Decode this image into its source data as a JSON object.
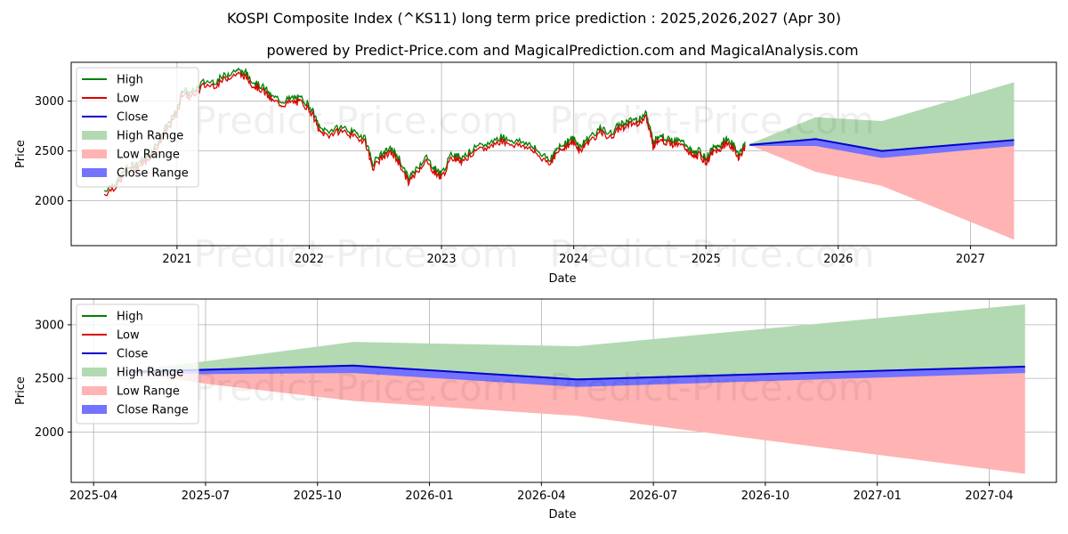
{
  "title": "KOSPI Composite Index (^KS11) long term price prediction : 2025,2026,2027 (Apr 30)",
  "subtitle": "powered by Predict-Price.com and MagicalPrediction.com and MagicalAnalysis.com",
  "watermark": "Predict-Price.com",
  "colors": {
    "high": "#008000",
    "low": "#dd0000",
    "close": "#0000cc",
    "high_range": "#b3d9b3",
    "low_range": "#ffb3b3",
    "close_range": "#7373ff",
    "grid": "#b0b0b0"
  },
  "chart_data": [
    {
      "type": "line",
      "xlabel": "Date",
      "ylabel": "Price",
      "xlim": [
        2020.2,
        2027.65
      ],
      "ylim": [
        1550,
        3390
      ],
      "xticks": [
        {
          "value": 2021,
          "label": "2021"
        },
        {
          "value": 2022,
          "label": "2022"
        },
        {
          "value": 2023,
          "label": "2023"
        },
        {
          "value": 2024,
          "label": "2024"
        },
        {
          "value": 2025,
          "label": "2025"
        },
        {
          "value": 2026,
          "label": "2026"
        },
        {
          "value": 2027,
          "label": "2027"
        }
      ],
      "yticks": [
        {
          "value": 2000,
          "label": "2000"
        },
        {
          "value": 2500,
          "label": "2500"
        },
        {
          "value": 3000,
          "label": "3000"
        }
      ],
      "legend": [
        "High",
        "Low",
        "Close",
        "High Range",
        "Low Range",
        "Close Range"
      ],
      "history_x": [
        2020.45,
        2020.55,
        2020.62,
        2020.7,
        2020.78,
        2020.85,
        2020.92,
        2021.0,
        2021.04,
        2021.1,
        2021.2,
        2021.3,
        2021.38,
        2021.45,
        2021.52,
        2021.58,
        2021.65,
        2021.72,
        2021.8,
        2021.88,
        2021.95,
        2022.02,
        2022.08,
        2022.15,
        2022.25,
        2022.35,
        2022.42,
        2022.48,
        2022.55,
        2022.62,
        2022.68,
        2022.75,
        2022.8,
        2022.88,
        2022.95,
        2023.0,
        2023.08,
        2023.15,
        2023.25,
        2023.35,
        2023.45,
        2023.55,
        2023.65,
        2023.72,
        2023.82,
        2023.88,
        2023.95,
        2024.0,
        2024.05,
        2024.1,
        2024.2,
        2024.28,
        2024.35,
        2024.42,
        2024.48,
        2024.55,
        2024.58,
        2024.6,
        2024.65,
        2024.7,
        2024.78,
        2024.85,
        2024.9,
        2024.95,
        2025.0,
        2025.05,
        2025.1,
        2025.15,
        2025.2,
        2025.25,
        2025.3
      ],
      "history_close": [
        2080,
        2180,
        2300,
        2360,
        2420,
        2560,
        2720,
        2880,
        3100,
        3050,
        3170,
        3180,
        3250,
        3290,
        3260,
        3170,
        3120,
        3020,
        2980,
        3010,
        3000,
        2900,
        2700,
        2680,
        2720,
        2650,
        2620,
        2350,
        2450,
        2500,
        2400,
        2200,
        2280,
        2420,
        2300,
        2250,
        2450,
        2420,
        2500,
        2550,
        2620,
        2580,
        2560,
        2480,
        2400,
        2500,
        2580,
        2600,
        2520,
        2600,
        2700,
        2650,
        2750,
        2780,
        2800,
        2850,
        2700,
        2560,
        2650,
        2600,
        2580,
        2550,
        2450,
        2480,
        2400,
        2500,
        2520,
        2600,
        2550,
        2450,
        2560
      ],
      "forecast_x": [
        2025.33,
        2025.83,
        2026.33,
        2027.33
      ],
      "high_range_upper": [
        2570,
        2840,
        2800,
        3190
      ],
      "low_range_lower": [
        2560,
        2290,
        2150,
        1610
      ],
      "close_range_upper": [
        2560,
        2620,
        2500,
        2600
      ],
      "close_range_lower": [
        2550,
        2550,
        2430,
        2550
      ],
      "close_forecast": [
        2560,
        2620,
        2500,
        2610
      ]
    },
    {
      "type": "line",
      "xlabel": "Date",
      "ylabel": "Price",
      "xlim": [
        2025.2,
        2027.4
      ],
      "ylim": [
        1530,
        3240
      ],
      "xticks": [
        {
          "value": 2025.25,
          "label": "2025-04"
        },
        {
          "value": 2025.5,
          "label": "2025-07"
        },
        {
          "value": 2025.75,
          "label": "2025-10"
        },
        {
          "value": 2026.0,
          "label": "2026-01"
        },
        {
          "value": 2026.25,
          "label": "2026-04"
        },
        {
          "value": 2026.5,
          "label": "2026-07"
        },
        {
          "value": 2026.75,
          "label": "2026-10"
        },
        {
          "value": 2027.0,
          "label": "2027-01"
        },
        {
          "value": 2027.25,
          "label": "2027-04"
        }
      ],
      "yticks": [
        {
          "value": 2000,
          "label": "2000"
        },
        {
          "value": 2500,
          "label": "2500"
        },
        {
          "value": 3000,
          "label": "3000"
        }
      ],
      "legend": [
        "High",
        "Low",
        "Close",
        "High Range",
        "Low Range",
        "Close Range"
      ],
      "forecast_x": [
        2025.33,
        2025.5,
        2025.83,
        2026.33,
        2027.33
      ],
      "high_range_upper": [
        2570,
        2660,
        2840,
        2800,
        3190
      ],
      "low_range_lower": [
        2560,
        2450,
        2290,
        2150,
        1610
      ],
      "close_range_upper": [
        2570,
        2590,
        2620,
        2500,
        2610
      ],
      "close_range_lower": [
        2550,
        2540,
        2550,
        2420,
        2550
      ],
      "close_forecast": [
        2560,
        2580,
        2620,
        2490,
        2610
      ]
    }
  ]
}
